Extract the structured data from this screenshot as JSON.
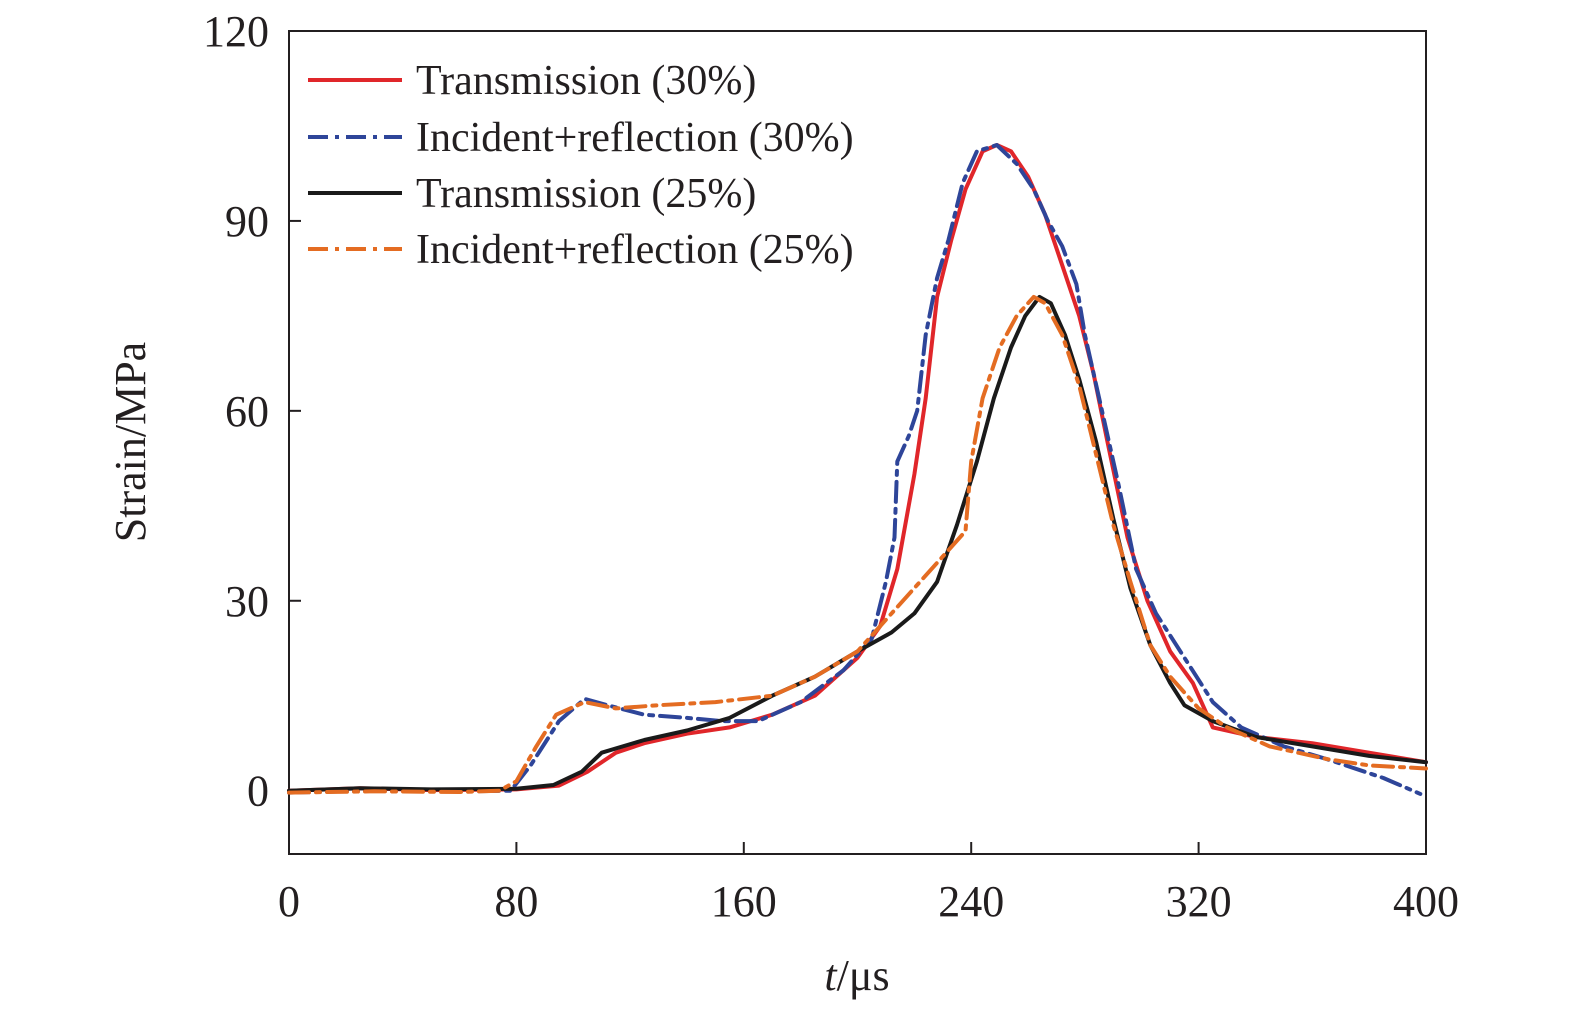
{
  "chart_data": {
    "type": "line",
    "title": "",
    "xlabel_italic": "t",
    "xlabel_rest": "/μs",
    "ylabel": "Strain/MPa",
    "xlim": [
      0,
      400
    ],
    "ylim": [
      -10,
      120
    ],
    "xticks": [
      0,
      80,
      160,
      240,
      320,
      400
    ],
    "yticks": [
      0,
      30,
      60,
      90,
      120
    ],
    "xtick_labels": [
      "0",
      "80",
      "160",
      "240",
      "320",
      "400"
    ],
    "ytick_labels": [
      "0",
      "30",
      "60",
      "90",
      "120"
    ],
    "grid": false,
    "legend_position": "top-left",
    "series": [
      {
        "name": "Transmission (30%)",
        "color": "#e0262a",
        "style": "solid",
        "points": [
          [
            0,
            0
          ],
          [
            25,
            0.4
          ],
          [
            50,
            0.1
          ],
          [
            80,
            0.2
          ],
          [
            95,
            0.8
          ],
          [
            105,
            3
          ],
          [
            115,
            6
          ],
          [
            125,
            7.5
          ],
          [
            140,
            9
          ],
          [
            155,
            10
          ],
          [
            170,
            12
          ],
          [
            185,
            15
          ],
          [
            200,
            21
          ],
          [
            208,
            26
          ],
          [
            214,
            35
          ],
          [
            220,
            50
          ],
          [
            224,
            62
          ],
          [
            228,
            78
          ],
          [
            233,
            87
          ],
          [
            238,
            95
          ],
          [
            244,
            101
          ],
          [
            249,
            102
          ],
          [
            254,
            101
          ],
          [
            260,
            97
          ],
          [
            266,
            91
          ],
          [
            272,
            83
          ],
          [
            278,
            75
          ],
          [
            283,
            66
          ],
          [
            288,
            55
          ],
          [
            295,
            40
          ],
          [
            302,
            30
          ],
          [
            310,
            22
          ],
          [
            318,
            17
          ],
          [
            325,
            10
          ],
          [
            340,
            8.5
          ],
          [
            360,
            7.5
          ],
          [
            380,
            6
          ],
          [
            400,
            4.5
          ]
        ]
      },
      {
        "name": "Incident+reflection (30%)",
        "color": "#2e4599",
        "style": "dashdot",
        "points": [
          [
            0,
            -0.3
          ],
          [
            30,
            0
          ],
          [
            60,
            -0.1
          ],
          [
            78,
            0
          ],
          [
            85,
            4
          ],
          [
            95,
            11
          ],
          [
            104,
            14.5
          ],
          [
            112,
            13.5
          ],
          [
            125,
            12
          ],
          [
            140,
            11.5
          ],
          [
            152,
            11
          ],
          [
            165,
            11
          ],
          [
            180,
            14
          ],
          [
            195,
            19
          ],
          [
            205,
            24
          ],
          [
            210,
            33
          ],
          [
            213,
            40
          ],
          [
            214,
            52
          ],
          [
            218,
            56
          ],
          [
            221,
            60
          ],
          [
            224,
            72
          ],
          [
            228,
            81
          ],
          [
            232,
            87
          ],
          [
            237,
            96
          ],
          [
            242,
            101
          ],
          [
            249,
            102
          ],
          [
            256,
            99
          ],
          [
            262,
            95
          ],
          [
            267,
            90
          ],
          [
            272,
            86
          ],
          [
            277,
            80
          ],
          [
            280,
            72
          ],
          [
            286,
            60
          ],
          [
            292,
            48
          ],
          [
            298,
            35
          ],
          [
            305,
            28
          ],
          [
            315,
            21
          ],
          [
            325,
            14
          ],
          [
            335,
            10
          ],
          [
            350,
            7
          ],
          [
            365,
            5
          ],
          [
            385,
            2
          ],
          [
            398,
            -0.5
          ]
        ]
      },
      {
        "name": "Transmission (25%)",
        "color": "#1a1a1a",
        "style": "solid",
        "points": [
          [
            0,
            0
          ],
          [
            25,
            0.4
          ],
          [
            50,
            0.2
          ],
          [
            80,
            0.3
          ],
          [
            93,
            0.9
          ],
          [
            103,
            3
          ],
          [
            110,
            6
          ],
          [
            125,
            8
          ],
          [
            140,
            9.5
          ],
          [
            155,
            11.5
          ],
          [
            170,
            15
          ],
          [
            185,
            18
          ],
          [
            200,
            22
          ],
          [
            212,
            25
          ],
          [
            220,
            28
          ],
          [
            228,
            33
          ],
          [
            235,
            42
          ],
          [
            242,
            52
          ],
          [
            248,
            62
          ],
          [
            254,
            70
          ],
          [
            259,
            75
          ],
          [
            264,
            78
          ],
          [
            268,
            77
          ],
          [
            273,
            72
          ],
          [
            278,
            65
          ],
          [
            284,
            55
          ],
          [
            290,
            43
          ],
          [
            296,
            32
          ],
          [
            303,
            23
          ],
          [
            310,
            17
          ],
          [
            315,
            13.5
          ],
          [
            325,
            11
          ],
          [
            340,
            8.5
          ],
          [
            360,
            7
          ],
          [
            380,
            5.5
          ],
          [
            400,
            4.5
          ]
        ]
      },
      {
        "name": "Incident+reflection (25%)",
        "color": "#e46c22",
        "style": "dashdot",
        "points": [
          [
            0,
            -0.3
          ],
          [
            30,
            -0.1
          ],
          [
            60,
            -0.2
          ],
          [
            74,
            0
          ],
          [
            80,
            1.5
          ],
          [
            87,
            7
          ],
          [
            94,
            12
          ],
          [
            104,
            14
          ],
          [
            115,
            13
          ],
          [
            130,
            13.5
          ],
          [
            150,
            14
          ],
          [
            170,
            15
          ],
          [
            185,
            18
          ],
          [
            200,
            22
          ],
          [
            212,
            28
          ],
          [
            222,
            33
          ],
          [
            232,
            38
          ],
          [
            238,
            41
          ],
          [
            240,
            52
          ],
          [
            244,
            62
          ],
          [
            250,
            70
          ],
          [
            256,
            75
          ],
          [
            262,
            78
          ],
          [
            266,
            77
          ],
          [
            272,
            72
          ],
          [
            278,
            64
          ],
          [
            284,
            53
          ],
          [
            290,
            42
          ],
          [
            296,
            33
          ],
          [
            303,
            23
          ],
          [
            310,
            18
          ],
          [
            320,
            13
          ],
          [
            330,
            10
          ],
          [
            345,
            7
          ],
          [
            365,
            5
          ],
          [
            380,
            4
          ],
          [
            400,
            3.5
          ]
        ]
      }
    ]
  }
}
